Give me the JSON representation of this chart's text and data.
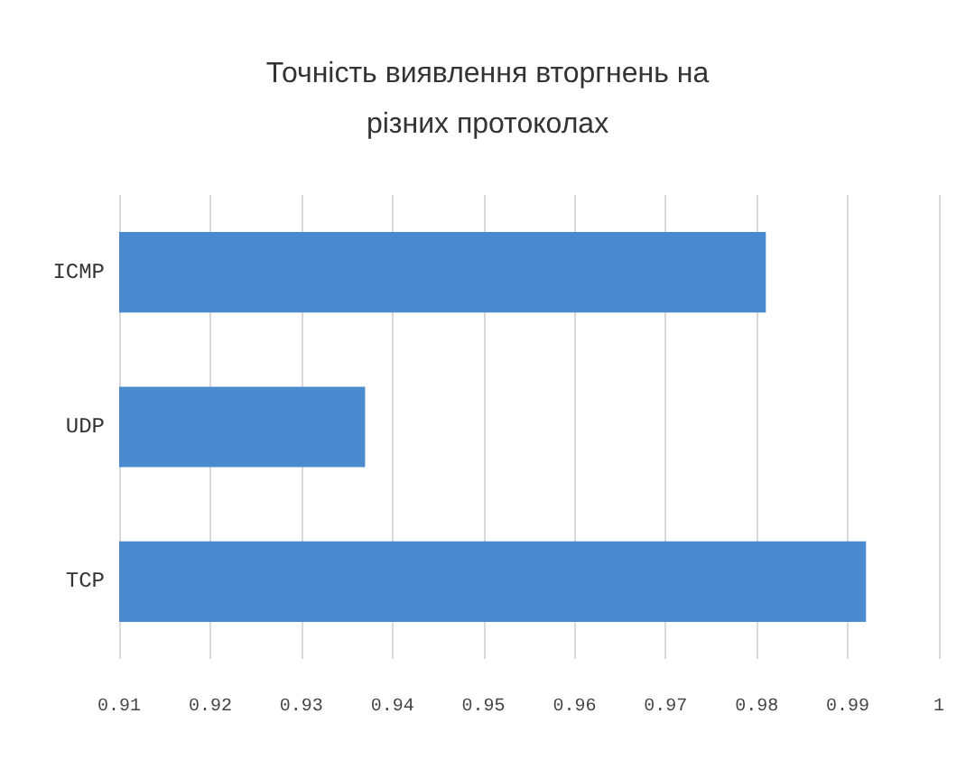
{
  "chart_data": {
    "type": "bar",
    "orientation": "horizontal",
    "title": "Точність виявлення вторгнень на\nрізних протоколах",
    "categories": [
      "ICMP",
      "UDP",
      "TCP"
    ],
    "values": [
      0.981,
      0.937,
      0.992
    ],
    "color": "#4a8bd0",
    "xlim": [
      0.91,
      1
    ],
    "xticks": [
      0.91,
      0.92,
      0.93,
      0.94,
      0.95,
      0.96,
      0.97,
      0.98,
      0.99,
      1
    ],
    "grid": "x"
  }
}
